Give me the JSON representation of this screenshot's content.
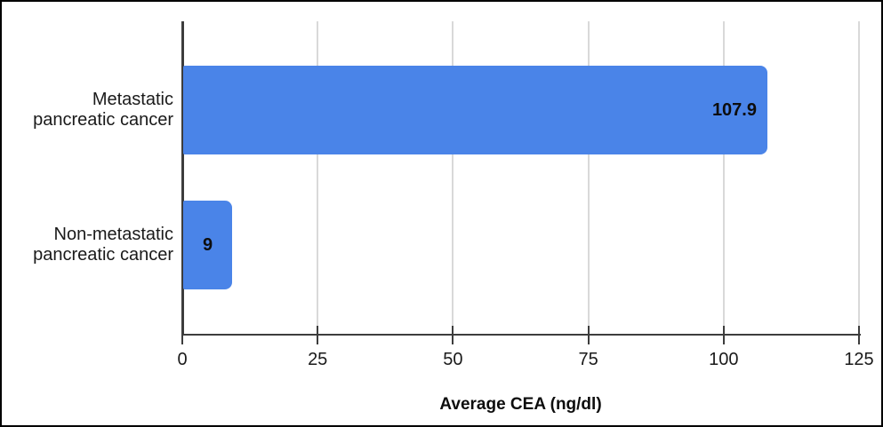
{
  "figure": {
    "background_color": "#ffffff",
    "border_color": "#000000"
  },
  "chart_data": {
    "type": "bar",
    "orientation": "horizontal",
    "title": "",
    "xlabel": "Average CEA (ng/dl)",
    "ylabel": "",
    "categories": [
      "Metastatic pancreatic cancer",
      "Non-metastatic pancreatic cancer"
    ],
    "category_lines": [
      [
        "Metastatic",
        "pancreatic cancer"
      ],
      [
        "Non-metastatic",
        "pancreatic cancer"
      ]
    ],
    "values": [
      107.9,
      9
    ],
    "value_labels": [
      "107.9",
      "9"
    ],
    "xlim": [
      0,
      125
    ],
    "xticks": [
      0,
      25,
      50,
      75,
      100,
      125
    ],
    "grid": true,
    "legend_position": "none",
    "bar_color": "#4a84e8",
    "gridline_color": "#d9d9d9",
    "axis_color": "#3d3d3d",
    "text_color": "#1a1a1a"
  }
}
